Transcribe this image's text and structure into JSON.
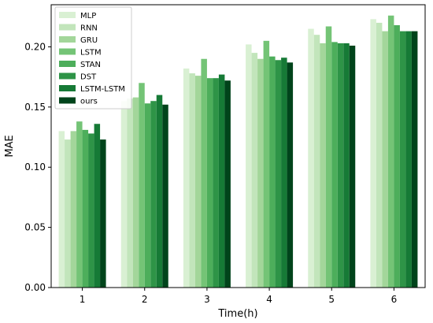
{
  "chart_data": {
    "type": "bar",
    "categories": [
      "1",
      "2",
      "3",
      "4",
      "5",
      "6"
    ],
    "xlabel": "Time(h)",
    "ylabel": "MAE",
    "ylim": [
      0,
      0.235
    ],
    "yticks": [
      "0.00",
      "0.05",
      "0.10",
      "0.15",
      "0.20"
    ],
    "legend_position": "top-left",
    "grid": false,
    "series": [
      {
        "name": "MLP",
        "color": "#d9f0d3",
        "values": [
          0.13,
          0.155,
          0.182,
          0.202,
          0.215,
          0.223
        ]
      },
      {
        "name": "RNN",
        "color": "#c2e5bb",
        "values": [
          0.123,
          0.157,
          0.178,
          0.195,
          0.21,
          0.22
        ]
      },
      {
        "name": "GRU",
        "color": "#a3d69a",
        "values": [
          0.13,
          0.158,
          0.176,
          0.19,
          0.203,
          0.213
        ]
      },
      {
        "name": "LSTM",
        "color": "#74c476",
        "values": [
          0.138,
          0.17,
          0.19,
          0.205,
          0.217,
          0.226
        ]
      },
      {
        "name": "STAN",
        "color": "#4dae5b",
        "values": [
          0.131,
          0.153,
          0.174,
          0.192,
          0.204,
          0.218
        ]
      },
      {
        "name": "DST",
        "color": "#2e9447",
        "values": [
          0.128,
          0.155,
          0.174,
          0.189,
          0.203,
          0.213
        ]
      },
      {
        "name": "LSTM-LSTM",
        "color": "#167a36",
        "values": [
          0.136,
          0.16,
          0.177,
          0.191,
          0.203,
          0.213
        ]
      },
      {
        "name": "ours",
        "color": "#00441b",
        "values": [
          0.123,
          0.152,
          0.172,
          0.187,
          0.201,
          0.213
        ]
      }
    ]
  }
}
